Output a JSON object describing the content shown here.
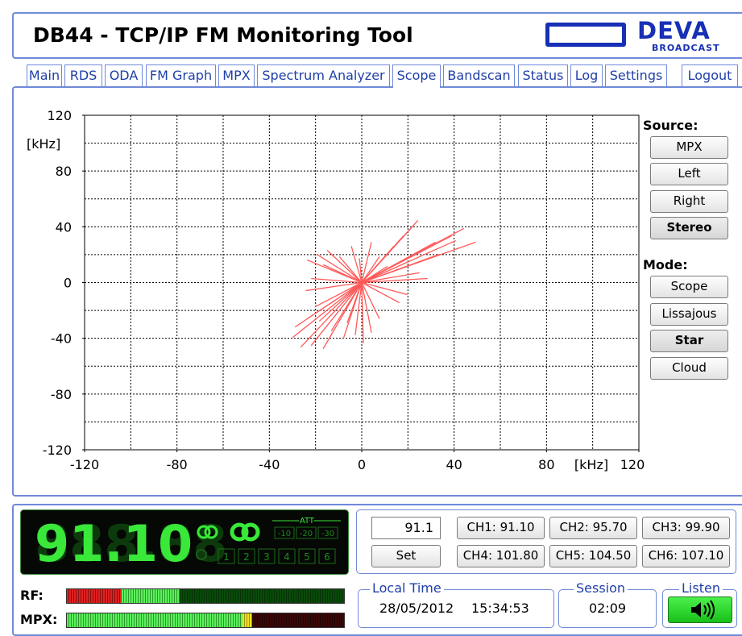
{
  "header": {
    "title": "DB44 - TCP/IP FM Monitoring Tool",
    "logo": "DEVA",
    "logo_sub": "BROADCAST"
  },
  "tabs": [
    "Main",
    "RDS",
    "ODA",
    "FM Graph",
    "MPX",
    "Spectrum Analyzer",
    "Scope",
    "Bandscan",
    "Status",
    "Log",
    "Settings",
    "Logout"
  ],
  "active_tab": 6,
  "chart_data": {
    "type": "star",
    "color": "#ff5a5a",
    "xlim": [
      -120,
      120
    ],
    "ylim": [
      -120,
      120
    ],
    "xticks": [
      -120,
      -80,
      -40,
      0,
      40,
      80,
      120
    ],
    "yticks": [
      -120,
      -80,
      -40,
      0,
      40,
      80,
      120
    ],
    "xgrid": [
      -100,
      -80,
      -60,
      -40,
      -20,
      0,
      20,
      40,
      60,
      80,
      100
    ],
    "ygrid": [
      -100,
      -80,
      -60,
      -40,
      -20,
      0,
      20,
      40,
      60,
      80,
      100
    ],
    "grid": true,
    "x_unit": "[kHz]",
    "y_unit": "[kHz]",
    "x": [
      49.4,
      44.2,
      39.0,
      32.0,
      24.3,
      21.6,
      18.1,
      13.9,
      28.5,
      25.0,
      19.8,
      16.3,
      7.7,
      4.2,
      0.7,
      -2.8,
      -8.0,
      -16.7,
      -21.9,
      -26.4,
      -29.9,
      -28.9,
      -23.7,
      -20.2,
      -24.3,
      -21.9,
      -23.7,
      -19.5,
      -15.0,
      -9.7,
      -4.5,
      -1.0,
      4.2,
      7.7,
      -16.7,
      -18.4,
      -13.2,
      -6.3,
      11.1,
      33.7,
      40.7
    ],
    "y": [
      29.0,
      38.8,
      33.6,
      29.0,
      44.6,
      39.4,
      33.6,
      26.1,
      2.9,
      7.0,
      -8.7,
      -14.5,
      -26.1,
      -35.9,
      -43.5,
      -37.7,
      -40.6,
      -47.5,
      -45.2,
      -46.4,
      -39.4,
      -31.9,
      -26.1,
      -17.4,
      -5.8,
      2.9,
      16.2,
      20.3,
      23.2,
      18.6,
      26.1,
      17.4,
      29.0,
      18.6,
      12.8,
      -27.8,
      -34.8,
      -29.0,
      11.6,
      20.3,
      30.1
    ]
  },
  "source": {
    "label": "Source:",
    "options": [
      "MPX",
      "Left",
      "Right",
      "Stereo"
    ],
    "selected": 3
  },
  "mode": {
    "label": "Mode:",
    "options": [
      "Scope",
      "Lissajous",
      "Star",
      "Cloud"
    ],
    "selected": 2
  },
  "display": {
    "frequency": "91.10",
    "att_label": "ATT",
    "att": [
      "-10",
      "-20",
      "-30"
    ],
    "presets": [
      "1",
      "2",
      "3",
      "4",
      "5",
      "6"
    ]
  },
  "meters": {
    "rf": "RF:",
    "mpx": "MPX:"
  },
  "tuner": {
    "input": "91.1",
    "set": "Set",
    "channels": [
      "CH1: 91.10",
      "CH2: 95.70",
      "CH3: 99.90",
      "CH4: 101.80",
      "CH5: 104.50",
      "CH6: 107.10"
    ]
  },
  "local_time": {
    "label": "Local Time",
    "date": "28/05/2012",
    "time": "15:34:53"
  },
  "session": {
    "label": "Session",
    "value": "02:09"
  },
  "listen": {
    "label": "Listen"
  }
}
